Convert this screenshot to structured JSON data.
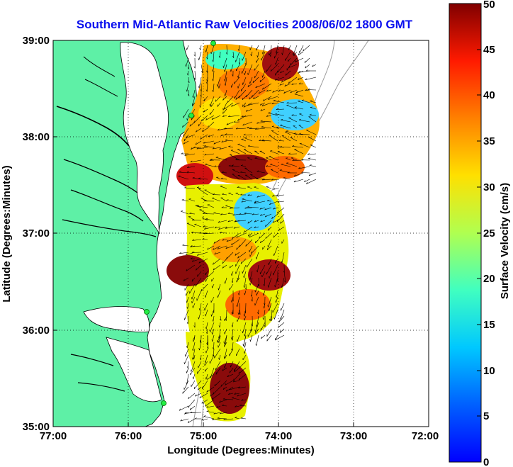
{
  "title": "Southern Mid-Atlantic Raw Velocities 2008/06/02 1800 GMT",
  "x_axis": {
    "label": "Longitude (Degrees:Minutes)",
    "ticks": [
      "77:00",
      "76:00",
      "75:00",
      "74:00",
      "73:00",
      "72:00"
    ]
  },
  "y_axis": {
    "label": "Latitude (Degrees:Minutes)",
    "ticks": [
      "39:00",
      "38:00",
      "37:00",
      "36:00",
      "35:00"
    ]
  },
  "colorbar": {
    "label": "Surface Velocity (cm/s)",
    "ticks": [
      "50",
      "45",
      "40",
      "35",
      "30",
      "25",
      "20",
      "15",
      "10",
      "5",
      "0"
    ],
    "min": 0,
    "max": 50,
    "colormap": "jet"
  },
  "map": {
    "lon_range": [
      -77,
      -72
    ],
    "lat_range": [
      35,
      39
    ],
    "land_color": "#5ef0a6",
    "coast_color": "#000000",
    "bathymetry_color": "#9a9a9a",
    "grid": "dotted",
    "radar_sites": 4
  }
}
